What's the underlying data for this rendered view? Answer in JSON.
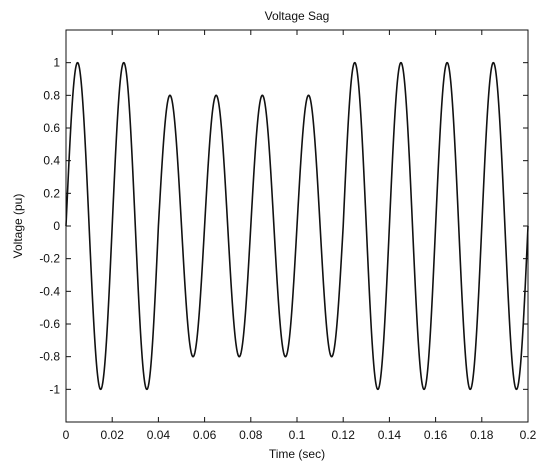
{
  "chart_data": {
    "type": "line",
    "title": "Voltage Sag",
    "xlabel": "Time (sec)",
    "ylabel": "Voltage (pu)",
    "xlim": [
      0,
      0.2
    ],
    "ylim": [
      -1.2,
      1.2
    ],
    "x_ticks": [
      0,
      0.02,
      0.04,
      0.06,
      0.08,
      0.1,
      0.12,
      0.14,
      0.16,
      0.18,
      0.2
    ],
    "x_tick_labels": [
      "0",
      "0.02",
      "0.04",
      "0.06",
      "0.08",
      "0.1",
      "0.12",
      "0.14",
      "0.16",
      "0.18",
      "0.2"
    ],
    "y_ticks": [
      1,
      0.8,
      0.6,
      0.4,
      0.2,
      0,
      -0.2,
      -0.4,
      -0.6,
      -0.8,
      -1
    ],
    "y_tick_labels": [
      "1",
      "0.8",
      "0.6",
      "0.4",
      "0.2",
      "0",
      "-0.2",
      "-0.4",
      "-0.6",
      "-0.8",
      "-1"
    ],
    "grid": false,
    "series": [
      {
        "frequency_hz": 50,
        "segments": [
          {
            "t_start": 0,
            "t_end": 0.04,
            "amplitude": 1.0
          },
          {
            "t_start": 0.04,
            "t_end": 0.12,
            "amplitude": 0.8
          },
          {
            "t_start": 0.12,
            "t_end": 0.2,
            "amplitude": 1.0
          }
        ]
      }
    ]
  }
}
